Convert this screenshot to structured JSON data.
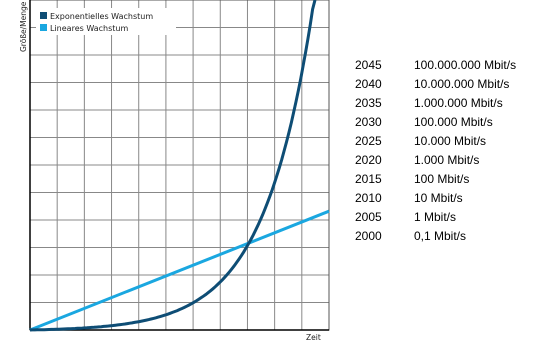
{
  "chart_data": {
    "type": "line",
    "xlabel": "Zeit",
    "ylabel": "Größe/Menge",
    "grid": true,
    "legend_position": "top-left",
    "series": [
      {
        "name": "Exponentielles Wachstum",
        "color": "#0e4d75",
        "shape": "exponential"
      },
      {
        "name": "Lineares Wachstum",
        "color": "#1aa7e0",
        "shape": "linear"
      }
    ]
  },
  "table": {
    "rows": [
      {
        "year": "2045",
        "value": "100.000.000 Mbit/s"
      },
      {
        "year": "2040",
        "value": "10.000.000 Mbit/s"
      },
      {
        "year": "2035",
        "value": "1.000.000 Mbit/s"
      },
      {
        "year": "2030",
        "value": "100.000 Mbit/s"
      },
      {
        "year": "2025",
        "value": "10.000 Mbit/s"
      },
      {
        "year": "2020",
        "value": "1.000 Mbit/s"
      },
      {
        "year": "2015",
        "value": "100 Mbit/s"
      },
      {
        "year": "2010",
        "value": "10 Mbit/s"
      },
      {
        "year": "2005",
        "value": "1 Mbit/s"
      },
      {
        "year": "2000",
        "value": "0,1 Mbit/s"
      }
    ]
  }
}
